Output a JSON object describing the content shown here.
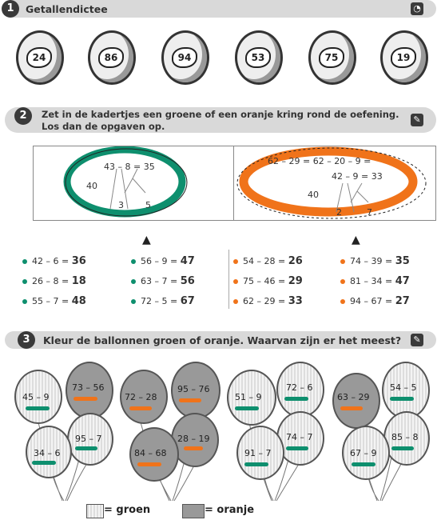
{
  "s1": {
    "num": "1",
    "title": "Getallendictee",
    "balls": [
      "24",
      "86",
      "94",
      "53",
      "75",
      "19"
    ]
  },
  "s2": {
    "num": "2",
    "title1": "Zet in de kadertjes een groene of een oranje kring rond de oefening.",
    "title2": "Los dan de opgaven op.",
    "left": {
      "eq": "43 – 8 = 35",
      "a": "40",
      "b": "3",
      "c": "5"
    },
    "right": {
      "eq1": "62 – 29 = 62 – 20 – 9 =",
      "eq2": "42 – 9 = 33",
      "a": "40",
      "b": "2",
      "c": "7"
    },
    "colors": {
      "green": "#0e8f6e",
      "orange": "#f0731a"
    },
    "col1": [
      {
        "q": "42 – 6 =",
        "a": "36"
      },
      {
        "q": "26 – 8 =",
        "a": "18"
      },
      {
        "q": "55 – 7 =",
        "a": "48"
      }
    ],
    "col2": [
      {
        "q": "56 – 9 =",
        "a": "47"
      },
      {
        "q": "63 – 7 =",
        "a": "56"
      },
      {
        "q": "72 – 5 =",
        "a": "67"
      }
    ],
    "col3": [
      {
        "q": "54 – 28 =",
        "a": "26"
      },
      {
        "q": "75 – 46 =",
        "a": "29"
      },
      {
        "q": "62 – 29 =",
        "a": "33"
      }
    ],
    "col4": [
      {
        "q": "74 – 39 =",
        "a": "35"
      },
      {
        "q": "81 – 34 =",
        "a": "47"
      },
      {
        "q": "94 – 67 =",
        "a": "27"
      }
    ]
  },
  "s3": {
    "num": "3",
    "title": "Kleur de ballonnen groen of oranje. Waarvan zijn er het meest?",
    "g1": [
      "45 – 9",
      "73 – 56",
      "95 – 7",
      "34 – 6"
    ],
    "g2": [
      "72 – 28",
      "95 – 76",
      "28 – 19",
      "84 – 68"
    ],
    "g3": [
      "51 – 9",
      "72 – 6",
      "74 – 7",
      "91 – 7"
    ],
    "g4": [
      "63 – 29",
      "54 – 5",
      "85 – 8",
      "67 – 9"
    ],
    "legend_green": "= groen",
    "legend_orange": "= oranje"
  }
}
